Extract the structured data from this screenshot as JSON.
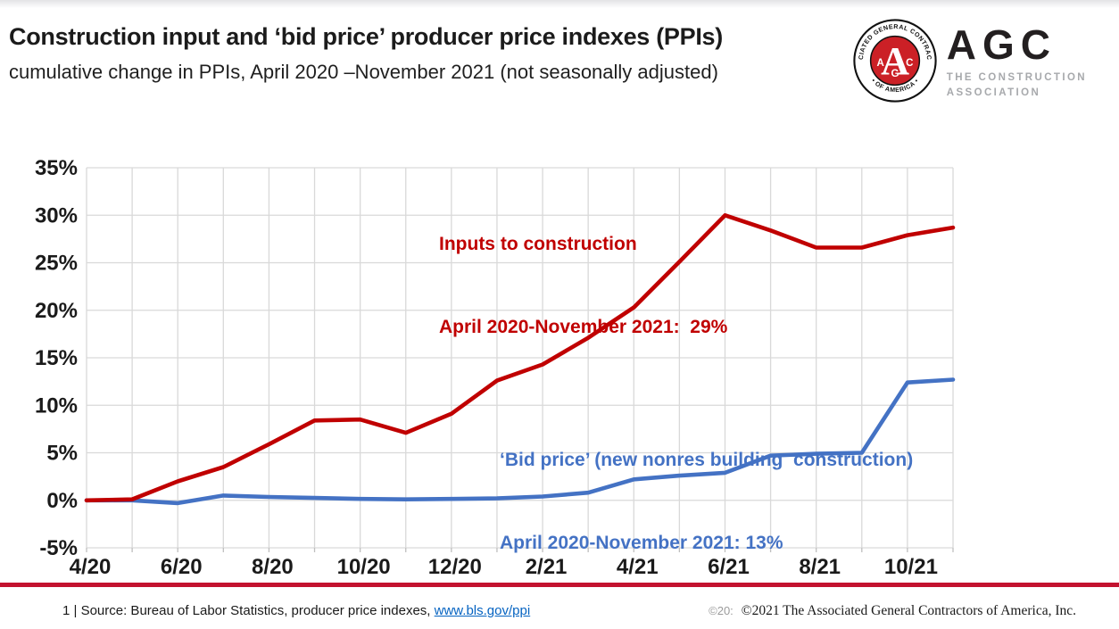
{
  "header": {
    "title": "Construction input and ‘bid price’ producer price indexes (PPIs)",
    "subtitle": "cumulative change in PPIs, April 2020 –November 2021 (not seasonally adjusted)"
  },
  "logo": {
    "seal_text_top": "ASSOCIATED GENERAL CONTRACTORS",
    "seal_text_bottom": "• OF AMERICA •",
    "seal_big_letter": "A",
    "seal_small_left": "A",
    "seal_small_bottom": "G",
    "seal_small_right": "C",
    "seal_red": "#CB2026",
    "brand": "AGC",
    "tagline_line1": "THE CONSTRUCTION",
    "tagline_line2": "ASSOCIATION"
  },
  "chart_data": {
    "type": "line",
    "title": "Construction input and bid price PPIs, cumulative change April 2020 - November 2021",
    "x": [
      "4/20",
      "5/20",
      "6/20",
      "7/20",
      "8/20",
      "9/20",
      "10/20",
      "11/20",
      "12/20",
      "1/21",
      "2/21",
      "3/21",
      "4/21",
      "5/21",
      "6/21",
      "7/21",
      "8/21",
      "9/21",
      "10/21",
      "11/21"
    ],
    "xtick_indices": [
      0,
      2,
      4,
      6,
      8,
      10,
      12,
      14,
      16,
      18
    ],
    "xtick_labels": [
      "4/20",
      "6/20",
      "8/20",
      "10/20",
      "12/20",
      "2/21",
      "4/21",
      "6/21",
      "8/21",
      "10/21"
    ],
    "ytick_values": [
      35,
      30,
      25,
      20,
      15,
      10,
      5,
      0,
      -5
    ],
    "ytick_labels": [
      "35%",
      "30%",
      "25%",
      "20%",
      "15%",
      "10%",
      "5%",
      "0%",
      "-5%"
    ],
    "ylim": [
      -5,
      35
    ],
    "grid": true,
    "legend_position": "inline-annotations",
    "series": [
      {
        "id": "bid-price",
        "name": "‘Bid price’ (new nonres building construction)",
        "color": "#4472C4",
        "values": [
          0.0,
          0.0,
          -0.3,
          0.5,
          0.35,
          0.25,
          0.15,
          0.1,
          0.15,
          0.2,
          0.4,
          0.8,
          2.2,
          2.6,
          2.9,
          4.7,
          4.9,
          5.0,
          12.4,
          12.7
        ]
      },
      {
        "id": "inputs",
        "name": "Inputs to construction",
        "color": "#C00000",
        "values": [
          0.0,
          0.1,
          2.0,
          3.5,
          5.9,
          8.4,
          8.5,
          7.1,
          9.1,
          12.6,
          14.3,
          17.1,
          20.3,
          25.1,
          30.0,
          28.4,
          26.6,
          26.6,
          27.9,
          28.7
        ]
      }
    ],
    "annotations": [
      {
        "id": "inputs",
        "lines": [
          "Inputs to construction",
          "April 2020-November 2021:  29%"
        ],
        "color": "#C00000"
      },
      {
        "id": "bid-price",
        "lines": [
          "‘Bid price’ (new nonres building  construction)",
          "April 2020-November 2021: 13%"
        ],
        "color": "#4472C4"
      }
    ]
  },
  "footer": {
    "source_prefix": "1 | Source: Bureau of Labor Statistics, producer price indexes, ",
    "source_link": "www.bls.gov/ppi",
    "copyright_ghost": "©20:",
    "copyright": "©2021 The Associated General Contractors of America, Inc."
  }
}
